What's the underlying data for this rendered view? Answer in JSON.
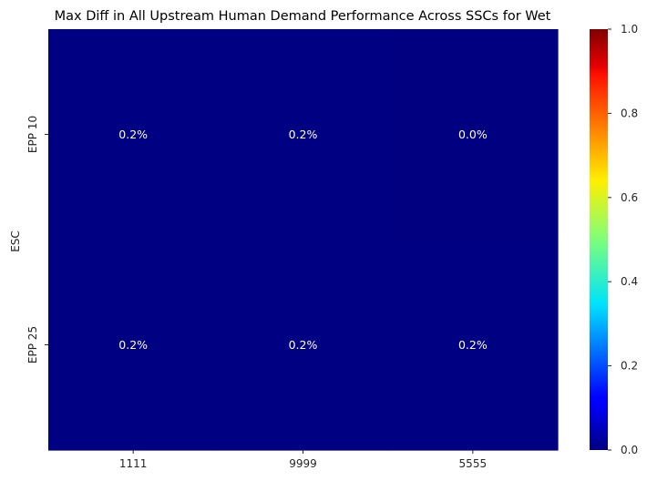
{
  "chart_data": {
    "type": "heatmap",
    "title": "Max Diff in All Upstream Human Demand Performance Across SSCs for Wet",
    "xlabel": "",
    "ylabel": "ESC",
    "x_categories": [
      "1111",
      "9999",
      "5555"
    ],
    "y_categories": [
      "EPP 10",
      "EPP 25"
    ],
    "values": [
      [
        0.002,
        0.002,
        0.0
      ],
      [
        0.002,
        0.002,
        0.002
      ]
    ],
    "cell_labels": [
      [
        "0.2%",
        "0.2%",
        "0.0%"
      ],
      [
        "0.2%",
        "0.2%",
        "0.2%"
      ]
    ],
    "colormap": "jet",
    "vmin": 0,
    "vmax": 1,
    "colorbar_ticks": [
      "0.0",
      "0.2",
      "0.4",
      "0.6",
      "0.8",
      "1.0"
    ],
    "colorbar_tick_values": [
      0,
      0.2,
      0.4,
      0.6,
      0.8,
      1.0
    ],
    "text_color": "#ffffff"
  }
}
